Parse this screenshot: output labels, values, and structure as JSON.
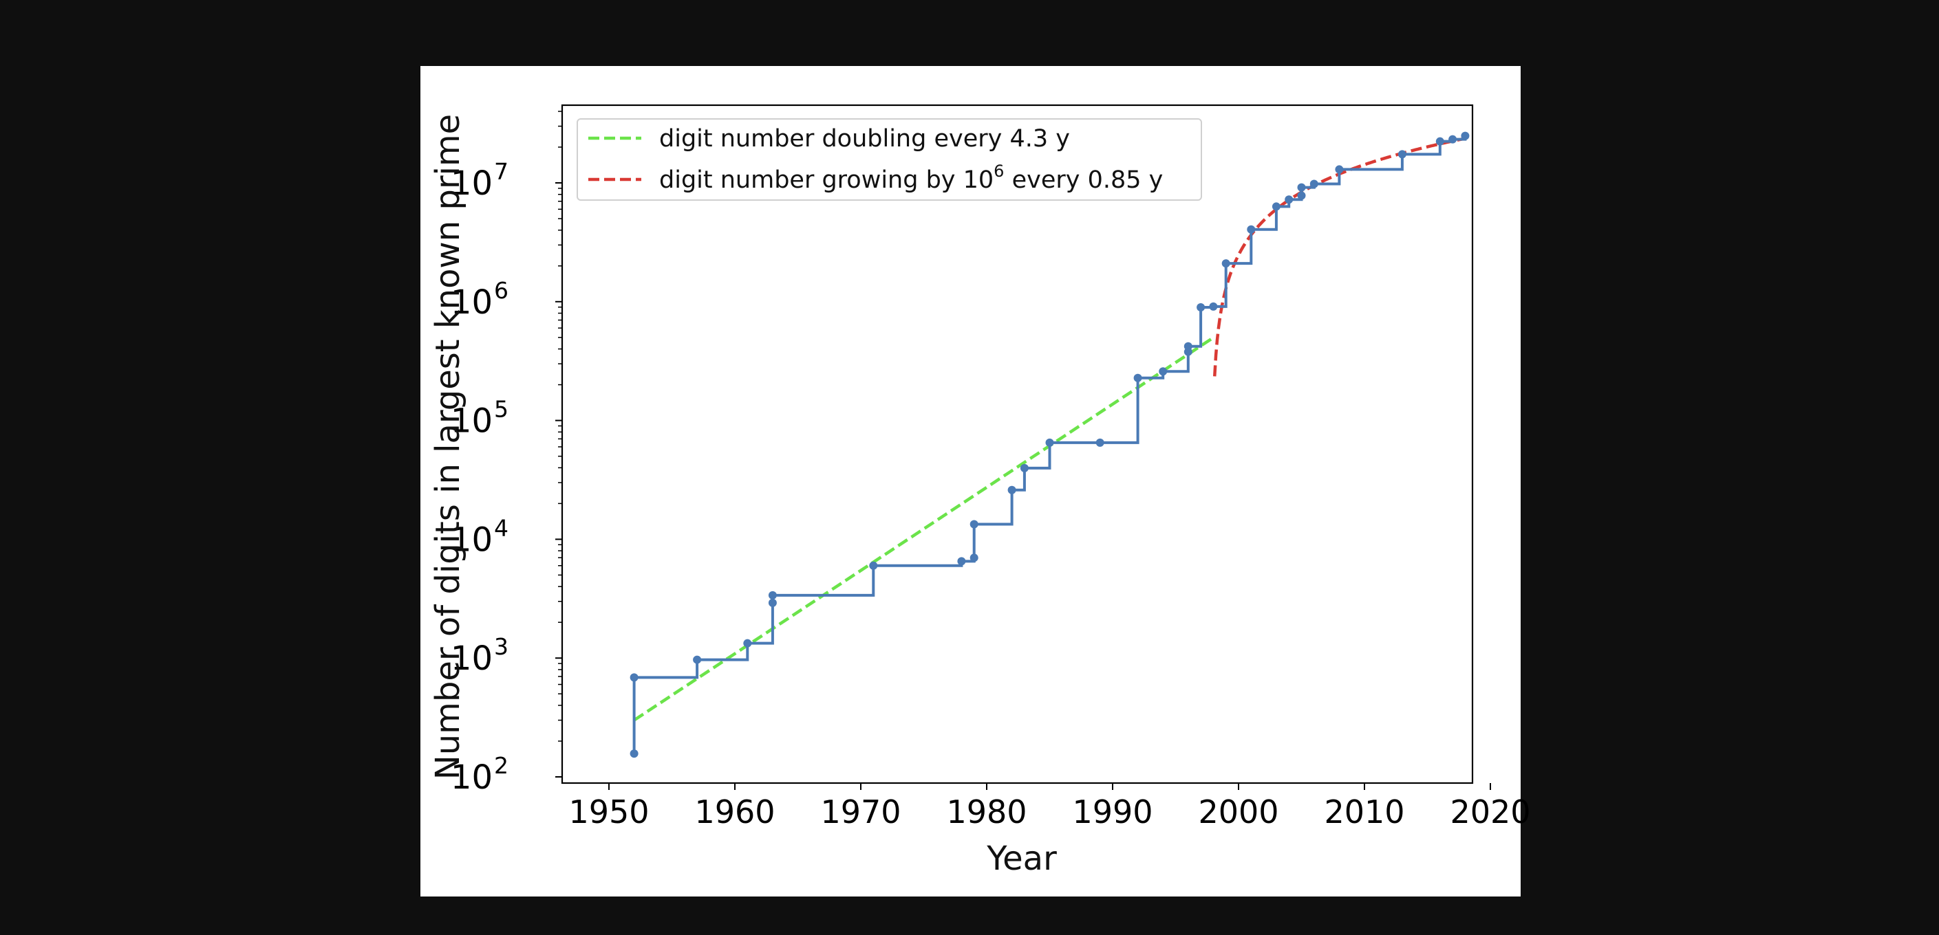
{
  "chart_data": {
    "type": "line",
    "title": "",
    "xlabel": "Year",
    "ylabel": "Number of digits in largest known prime",
    "xlim": [
      1948.5,
      2021
    ],
    "ylim": [
      90,
      45000000
    ],
    "yscale": "log",
    "grid": false,
    "legend_placement": "upper-left",
    "x_ticks": [
      "1950",
      "1960",
      "1970",
      "1980",
      "1990",
      "2000",
      "2010",
      "2020"
    ],
    "y_ticks": [
      {
        "base": "10",
        "exp": "2"
      },
      {
        "base": "10",
        "exp": "3"
      },
      {
        "base": "10",
        "exp": "4"
      },
      {
        "base": "10",
        "exp": "5"
      },
      {
        "base": "10",
        "exp": "6"
      },
      {
        "base": "10",
        "exp": "7"
      }
    ],
    "series": [
      {
        "kind": "step-markers",
        "color": "#4a7ab5",
        "points": [
          [
            1952,
            157
          ],
          [
            1952,
            687
          ],
          [
            1957,
            969
          ],
          [
            1961,
            1332
          ],
          [
            1963,
            2917
          ],
          [
            1963,
            3376
          ],
          [
            1971,
            6002
          ],
          [
            1978,
            6533
          ],
          [
            1979,
            6987
          ],
          [
            1979,
            13395
          ],
          [
            1982,
            25962
          ],
          [
            1983,
            39751
          ],
          [
            1985,
            65050
          ],
          [
            1989,
            65087
          ],
          [
            1992,
            227832
          ],
          [
            1994,
            258716
          ],
          [
            1996,
            378632
          ],
          [
            1996,
            420921
          ],
          [
            1997,
            895932
          ],
          [
            1998,
            909526
          ],
          [
            1999,
            2098960
          ],
          [
            2001,
            4053946
          ],
          [
            2003,
            6320430
          ],
          [
            2004,
            7235733
          ],
          [
            2005,
            7816230
          ],
          [
            2005,
            9152052
          ],
          [
            2006,
            9808358
          ],
          [
            2008,
            12978189
          ],
          [
            2013,
            17425170
          ],
          [
            2016,
            22338618
          ],
          [
            2017,
            23249425
          ],
          [
            2018,
            24862048
          ]
        ]
      },
      {
        "kind": "fit",
        "color": "#6be34a",
        "label_parts": {
          "pre": "digit number doubling every 4.3 y"
        },
        "x": [
          1952,
          1998
        ]
      },
      {
        "kind": "fit",
        "color": "#d93a34",
        "label_parts": {
          "pre": "digit number growing by 10",
          "sup": "6",
          "post": " every 0.85 y"
        },
        "x": [
          1998.1,
          2018
        ]
      }
    ]
  }
}
